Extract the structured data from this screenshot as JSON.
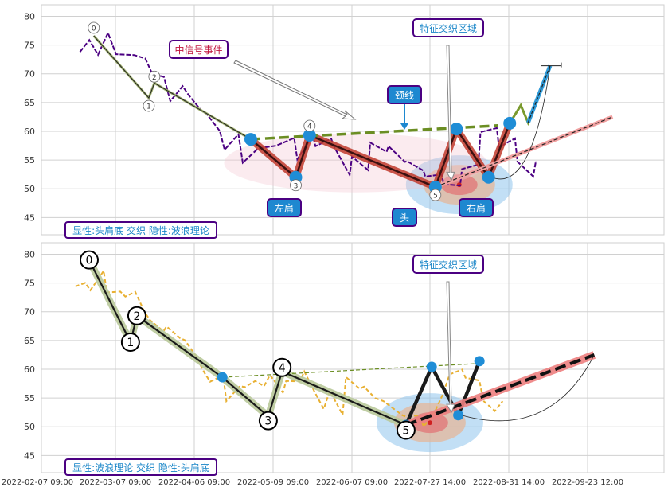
{
  "chart_data": [
    {
      "type": "line",
      "ylim": [
        42,
        82
      ],
      "yticks": [
        45,
        50,
        55,
        60,
        65,
        70,
        75,
        80
      ],
      "x_dates": [
        "2022-02-07 09:00",
        "2022-03-07 09:00",
        "2022-04-06 09:00",
        "2022-05-09 09:00",
        "2022-06-07 09:00",
        "2022-07-27 14:00",
        "2022-08-31 14:00",
        "2022-09-23 12:00"
      ],
      "grid": true,
      "price_series": {
        "color": "#4b0082",
        "points": [
          [
            0,
            73.8
          ],
          [
            1,
            75.2
          ],
          [
            2,
            74.2
          ],
          [
            3,
            76.6
          ],
          [
            4,
            73.2
          ],
          [
            5,
            74.1
          ],
          [
            6,
            72.4
          ],
          [
            7,
            73.0
          ],
          [
            8,
            70.4
          ],
          [
            9,
            68.6
          ],
          [
            10,
            66.0
          ],
          [
            11,
            67.7
          ],
          [
            12,
            65.8
          ],
          [
            13,
            64.5
          ],
          [
            14,
            62.4
          ],
          [
            15,
            60.0
          ],
          [
            16,
            57.5
          ],
          [
            17,
            58.6
          ],
          [
            18,
            55.0
          ],
          [
            19,
            57.1
          ],
          [
            20,
            56.3
          ],
          [
            21,
            58.3
          ],
          [
            22,
            57.4
          ],
          [
            23,
            58.4
          ],
          [
            24,
            56.0
          ],
          [
            25,
            58.5
          ],
          [
            26,
            57.5
          ],
          [
            27,
            59.3
          ],
          [
            28,
            56.5
          ],
          [
            29,
            53.0
          ],
          [
            30,
            55.7
          ],
          [
            31,
            52.5
          ],
          [
            32,
            58.9
          ],
          [
            33,
            56.0
          ],
          [
            34,
            57.1
          ],
          [
            35,
            55.5
          ],
          [
            36,
            54.0
          ],
          [
            37,
            53.4
          ],
          [
            38,
            52.6
          ],
          [
            39,
            51.6
          ],
          [
            40,
            51.5
          ],
          [
            41,
            50.5
          ],
          [
            42,
            52.8
          ],
          [
            43,
            55.1
          ],
          [
            44,
            59.3
          ],
          [
            45,
            60.4
          ],
          [
            46,
            58.0
          ],
          [
            47,
            57.9
          ],
          [
            48,
            55.1
          ],
          [
            49,
            52.5
          ],
          [
            50,
            54.0
          ]
        ]
      },
      "wave_points": [
        {
          "label": "0",
          "x": 1.5,
          "y": 76.6
        },
        {
          "label": "1",
          "x": 7.5,
          "y": 65.8
        },
        {
          "label": "2",
          "x": 8.1,
          "y": 68.4
        },
        {
          "label": "3",
          "x": 23.5,
          "y": 52.0
        },
        {
          "label": "4",
          "x": 25.0,
          "y": 59.3
        },
        {
          "label": "5",
          "x": 38.7,
          "y": 50.3
        }
      ],
      "hs_points": [
        [
          18.6,
          58.6
        ],
        [
          23.5,
          52.0
        ],
        [
          25.0,
          59.3
        ],
        [
          38.7,
          50.3
        ],
        [
          41.0,
          60.4
        ],
        [
          44.5,
          52.0
        ],
        [
          46.8,
          61.4
        ]
      ],
      "neckline": [
        [
          18.6,
          58.6
        ],
        [
          45.5,
          61.0
        ]
      ],
      "forecast_green": [
        [
          46.8,
          61.4
        ],
        [
          48.0,
          64.5
        ],
        [
          48.8,
          61.5
        ],
        [
          51.2,
          71.4
        ]
      ],
      "forecast_blue": [
        [
          48.8,
          61.5
        ],
        [
          51.2,
          71.4
        ]
      ],
      "forecast_red": [
        [
          38.7,
          50.3
        ],
        [
          58.0,
          62.5
        ]
      ],
      "labels": {
        "left_shoulder": "左肩",
        "head": "头",
        "right_shoulder": "右肩",
        "neckline": "颈线",
        "signal_event": "中信号事件",
        "zone": "特征交织区域"
      },
      "footer": "显性:头肩底 交织 隐性:波浪理论"
    },
    {
      "type": "line",
      "ylim": [
        42,
        82
      ],
      "yticks": [
        45,
        50,
        55,
        60,
        65,
        70,
        75,
        80
      ],
      "x_dates": [
        "2022-02-07 09:00",
        "2022-03-07 09:00",
        "2022-04-06 09:00",
        "2022-05-09 09:00",
        "2022-06-07 09:00",
        "2022-07-27 14:00",
        "2022-08-31 14:00",
        "2022-09-23 12:00"
      ],
      "grid": true,
      "price_series": {
        "color": "#e8b032"
      },
      "wave_points": [
        {
          "label": "0",
          "x": 1.0,
          "y": 79.0
        },
        {
          "label": "1",
          "x": 5.5,
          "y": 64.7
        },
        {
          "label": "2",
          "x": 6.2,
          "y": 69.3
        },
        {
          "label": "3",
          "x": 20.5,
          "y": 50.5
        },
        {
          "label": "4",
          "x": 22.0,
          "y": 60.3
        },
        {
          "label": "5",
          "x": 35.5,
          "y": 49.4
        }
      ],
      "hs_points": [
        [
          15.5,
          58.6
        ],
        [
          20.5,
          51.8
        ],
        [
          22.0,
          59.6
        ],
        [
          35.5,
          50.3
        ],
        [
          38.3,
          60.4
        ],
        [
          41.2,
          52.0
        ],
        [
          43.5,
          61.4
        ]
      ],
      "neckline": [
        [
          15.5,
          58.6
        ],
        [
          43.5,
          61.0
        ]
      ],
      "forecast_red": [
        [
          35.5,
          50.3
        ],
        [
          56.0,
          62.5
        ]
      ],
      "labels": {
        "zone": "特征交织区域"
      },
      "footer": "显性:波浪理论 交织 隐性:头肩底"
    }
  ],
  "colors": {
    "navy_box": "#4b0082",
    "signal_red": "#c0143c",
    "accent_blue": "#1e88d0",
    "shoulder_red": "#c0392b",
    "neck_green": "#6b8e23",
    "grid": "#d0d0d0"
  }
}
